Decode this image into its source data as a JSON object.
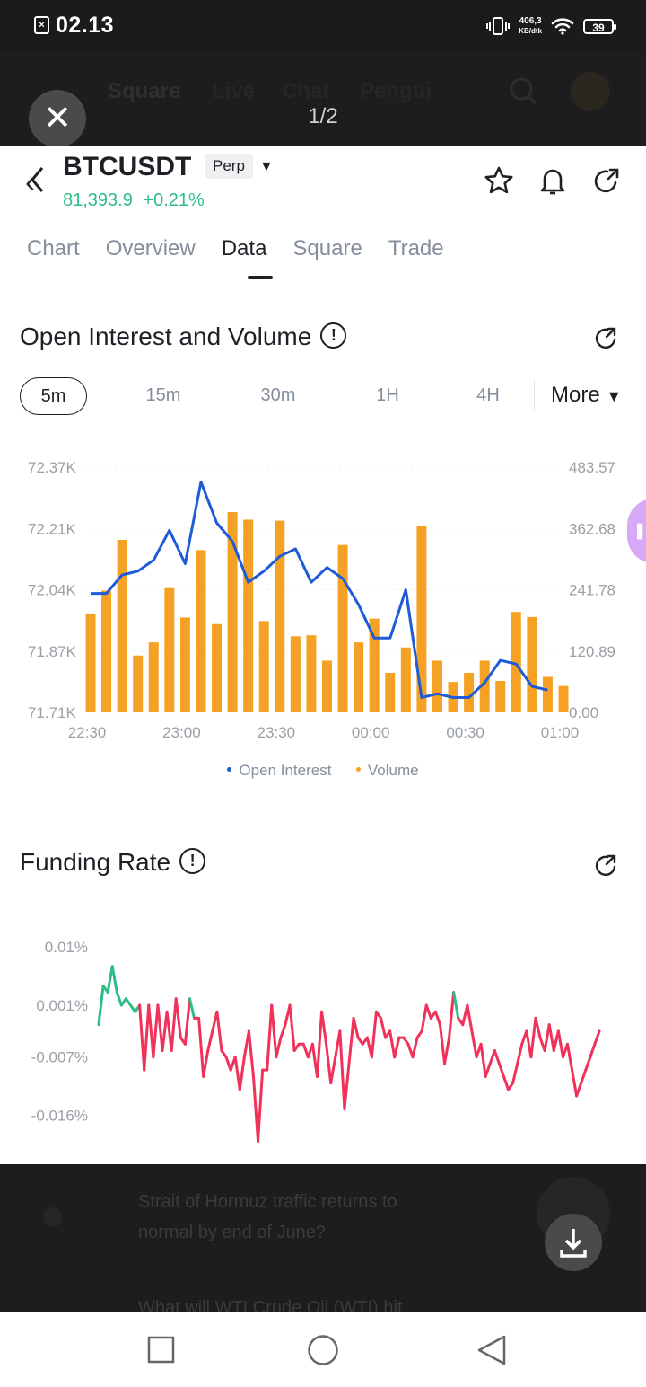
{
  "status_bar": {
    "time": "02.13",
    "net_speed_value": "406,3",
    "net_speed_unit": "KB/dtk",
    "battery": "39"
  },
  "background_nav": {
    "tabs": [
      "Square",
      "Live",
      "Chat",
      "Pengui"
    ]
  },
  "viewer": {
    "counter": "1/2"
  },
  "header": {
    "symbol": "BTCUSDT",
    "type_badge": "Perp",
    "price": "81,393.9",
    "change": "+0.21%"
  },
  "tabs": [
    {
      "label": "Chart",
      "active": false
    },
    {
      "label": "Overview",
      "active": false
    },
    {
      "label": "Data",
      "active": true
    },
    {
      "label": "Square",
      "active": false
    },
    {
      "label": "Trade",
      "active": false
    }
  ],
  "oi_section": {
    "title": "Open Interest and Volume"
  },
  "intervals": {
    "options": [
      "5m",
      "15m",
      "30m",
      "1H",
      "4H"
    ],
    "selected": "5m",
    "more_label": "More"
  },
  "funding_section": {
    "title": "Funding Rate"
  },
  "colors": {
    "open_interest": "#1e5bd6",
    "volume": "#f5a124",
    "funding_positive": "#2ebd85",
    "funding_negative": "#f0315a",
    "price_up": "#2ebd85"
  },
  "chart_data": [
    {
      "type": "bar+line",
      "x": [
        "22:30",
        "22:35",
        "22:40",
        "22:45",
        "22:50",
        "22:55",
        "23:00",
        "23:05",
        "23:10",
        "23:15",
        "23:20",
        "23:25",
        "23:30",
        "23:35",
        "23:40",
        "23:45",
        "23:50",
        "23:55",
        "00:00",
        "00:05",
        "00:10",
        "00:15",
        "00:20",
        "00:25",
        "00:30",
        "00:35",
        "00:40",
        "00:45",
        "00:50",
        "00:55",
        "01:00"
      ],
      "xticks": [
        "22:30",
        "23:00",
        "23:30",
        "00:00",
        "00:30",
        "01:00"
      ],
      "left_axis_ticks": [
        "72.37K",
        "72.21K",
        "72.04K",
        "71.87K",
        "71.71K"
      ],
      "right_axis_ticks": [
        "483.57",
        "362.68",
        "241.78",
        "120.89",
        "0.00"
      ],
      "left_ylim": [
        71.71,
        72.37
      ],
      "right_ylim": [
        0,
        483.57
      ],
      "series": [
        {
          "name": "Open Interest",
          "axis": "left",
          "type": "line",
          "values": [
            72.03,
            72.03,
            72.08,
            72.09,
            72.12,
            72.2,
            72.11,
            72.33,
            72.22,
            72.17,
            72.06,
            72.09,
            72.13,
            72.15,
            72.06,
            72.1,
            72.07,
            72.0,
            71.91,
            71.91,
            72.04,
            71.75,
            71.76,
            71.75,
            71.75,
            71.79,
            71.85,
            71.84,
            71.78,
            71.77,
            null
          ]
        },
        {
          "name": "Volume",
          "axis": "right",
          "type": "bar",
          "values": [
            195,
            240,
            340,
            112,
            138,
            245,
            187,
            320,
            174,
            395,
            380,
            180,
            378,
            150,
            152,
            102,
            330,
            138,
            185,
            78,
            128,
            367,
            102,
            60,
            78,
            102,
            62,
            198,
            188,
            70,
            52
          ]
        }
      ]
    },
    {
      "type": "line",
      "yticks": [
        "0.01%",
        "0.001%",
        "-0.007%",
        "-0.016%"
      ],
      "ylim": [
        -0.022,
        0.0125
      ],
      "series": [
        {
          "name": "Funding Rate",
          "values": [
            -0.002,
            0.004,
            0.003,
            0.007,
            0.003,
            0.001,
            0.002,
            0.001,
            0.0,
            0.001,
            -0.009,
            0.001,
            -0.007,
            0.001,
            -0.006,
            0.0,
            -0.006,
            0.002,
            -0.004,
            -0.005,
            0.002,
            -0.001,
            -0.001,
            -0.01,
            -0.006,
            -0.003,
            0.0,
            -0.006,
            -0.007,
            -0.009,
            -0.007,
            -0.012,
            -0.007,
            -0.003,
            -0.01,
            -0.02,
            -0.009,
            -0.009,
            0.001,
            -0.007,
            -0.004,
            -0.002,
            0.001,
            -0.006,
            -0.005,
            -0.005,
            -0.007,
            -0.005,
            -0.01,
            0.0,
            -0.005,
            -0.011,
            -0.007,
            -0.003,
            -0.015,
            -0.008,
            -0.001,
            -0.004,
            -0.005,
            -0.004,
            -0.007,
            0.0,
            -0.001,
            -0.004,
            -0.003,
            -0.007,
            -0.004,
            -0.004,
            -0.005,
            -0.007,
            -0.004,
            -0.003,
            0.001,
            -0.001,
            0.0,
            -0.002,
            -0.008,
            -0.004,
            0.003,
            -0.001,
            -0.002,
            0.001,
            -0.003,
            -0.007,
            -0.005,
            -0.01,
            -0.008,
            -0.006,
            -0.008,
            -0.01,
            -0.012,
            -0.011,
            -0.008,
            -0.005,
            -0.003,
            -0.007,
            -0.001,
            -0.004,
            -0.006,
            -0.002,
            -0.006,
            -0.003,
            -0.007,
            -0.005,
            -0.009,
            -0.013,
            -0.011,
            -0.009,
            -0.007,
            -0.005,
            -0.003
          ]
        }
      ]
    }
  ],
  "background_feed": {
    "question_line1": "Strait of Hormuz traffic returns to",
    "question_line2": "normal by end of June?",
    "next_question": "What will WTI Crude Oil (WTI) hit"
  }
}
